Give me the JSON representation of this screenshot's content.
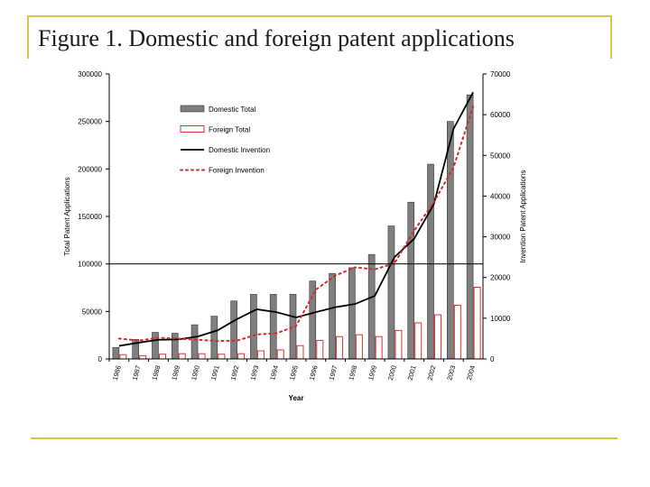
{
  "slide": {
    "title": "Figure 1. Domestic and foreign patent applications"
  },
  "colors": {
    "frame": "#d4c84c",
    "domestic_bar": "#7f7f7f",
    "foreign_bar": "#e03030",
    "domestic_line": "#000000",
    "foreign_line": "#d42a2a"
  },
  "chart_data": {
    "type": "bar",
    "title": "",
    "xlabel": "Year",
    "ylabel": "Total Patent Applications",
    "y2label": "Invention Patent Applications",
    "ylim": [
      0,
      300000
    ],
    "y2lim": [
      0,
      70000
    ],
    "yticks": [
      "0",
      "50000",
      "100000",
      "150000",
      "200000",
      "250000",
      "300000"
    ],
    "y2ticks": [
      "0",
      "10000",
      "20000",
      "30000",
      "40000",
      "50000",
      "60000",
      "70000"
    ],
    "grid": false,
    "legend_position": "top-left",
    "categories": [
      "1986",
      "1987",
      "1988",
      "1989",
      "1990",
      "1991",
      "1992",
      "1993",
      "1994",
      "1995",
      "1996",
      "1997",
      "1998",
      "1999",
      "2000",
      "2001",
      "2002",
      "2003",
      "2004"
    ],
    "series": [
      {
        "name": "Domestic Total",
        "kind": "bar",
        "axis": "left",
        "values": [
          12000,
          20500,
          28000,
          27000,
          36000,
          45000,
          61000,
          68000,
          68000,
          68000,
          82000,
          90000,
          96000,
          110000,
          140000,
          165000,
          205000,
          250000,
          278000
        ]
      },
      {
        "name": "Foreign Total",
        "kind": "bar",
        "axis": "left",
        "values": [
          4500,
          3500,
          5000,
          5500,
          5500,
          5000,
          5500,
          8500,
          9500,
          14000,
          19500,
          23500,
          25500,
          23500,
          30000,
          38000,
          46500,
          56500,
          75500
        ]
      },
      {
        "name": "Domestic Invention",
        "kind": "line",
        "axis": "right",
        "values": [
          3200,
          4000,
          4700,
          4800,
          5500,
          7000,
          9800,
          12200,
          11500,
          10200,
          11500,
          12700,
          13500,
          15500,
          25000,
          29500,
          38000,
          56500,
          65500
        ]
      },
      {
        "name": "Foreign Invention",
        "kind": "dotted",
        "axis": "right",
        "values": [
          5000,
          4500,
          5200,
          5000,
          4700,
          4400,
          4500,
          6000,
          6300,
          8100,
          17000,
          20500,
          22500,
          22000,
          23500,
          31500,
          38500,
          47000,
          62000
        ]
      }
    ]
  }
}
